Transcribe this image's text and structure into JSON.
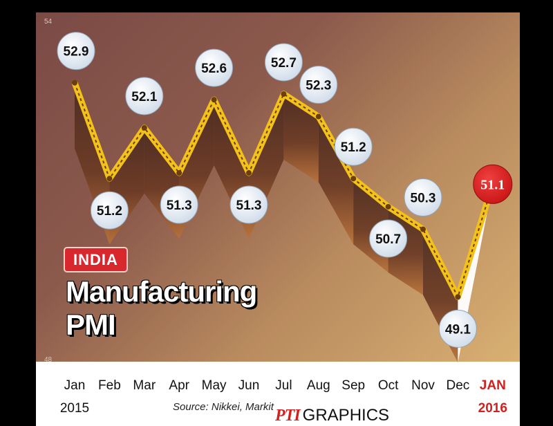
{
  "chart_data": {
    "type": "line",
    "title": "Manufacturing PMI",
    "tag": "INDIA",
    "categories": [
      "Jan",
      "Feb",
      "Mar",
      "Apr",
      "May",
      "Jun",
      "Jul",
      "Aug",
      "Sep",
      "Oct",
      "Nov",
      "Dec",
      "JAN"
    ],
    "year_labels": {
      "start": "2015",
      "end": "2016"
    },
    "values": [
      52.9,
      51.2,
      52.1,
      51.3,
      52.6,
      51.3,
      52.7,
      52.3,
      51.2,
      50.7,
      50.3,
      49.1,
      51.1
    ],
    "ylim": [
      48,
      54
    ],
    "yticks": [
      "54",
      "48"
    ],
    "highlight_index": 12,
    "highlight_color": "#d21f1f",
    "line_color": "#f2c21a",
    "source": "Source: Nikkei, Markit",
    "credit": {
      "pti": "PTI",
      "graphics": "GRAPHICS"
    }
  }
}
